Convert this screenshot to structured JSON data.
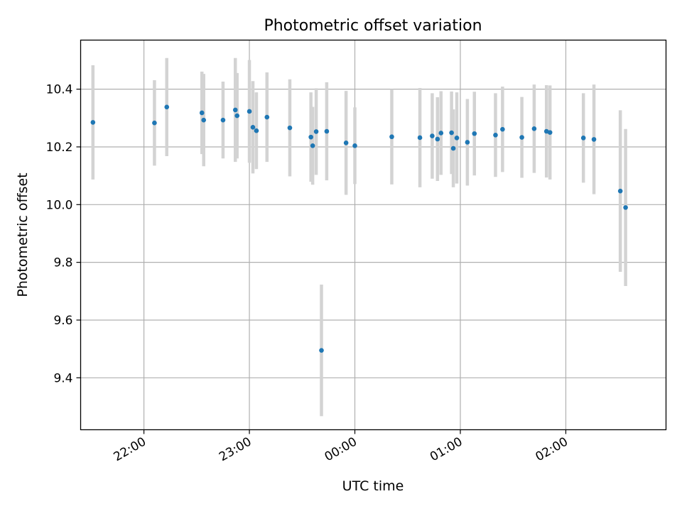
{
  "chart_data": {
    "type": "scatter",
    "title": "Photometric offset variation",
    "xlabel": "UTC time",
    "ylabel": "Photometric offset",
    "grid": true,
    "legend": null,
    "x_axis": {
      "range": [
        "21:24",
        "02:57"
      ],
      "ticks": [
        "22:00",
        "23:00",
        "00:00",
        "01:00",
        "02:00"
      ]
    },
    "y_axis": {
      "range": [
        9.22,
        10.57
      ],
      "ticks": [
        9.4,
        9.6,
        9.8,
        10.0,
        10.2,
        10.4
      ],
      "tick_labels": [
        "9.4",
        "9.6",
        "9.8",
        "10.0",
        "10.2",
        "10.4"
      ]
    },
    "colors": {
      "marker": "#1f77b4",
      "errorbar": "#d3d3d3",
      "grid": "#b0b0b0"
    },
    "series": [
      {
        "marker": "point",
        "error": "vertical",
        "points": [
          {
            "t": "21:31",
            "y": 10.285,
            "err": 0.198
          },
          {
            "t": "22:06",
            "y": 10.283,
            "err": 0.148
          },
          {
            "t": "22:13",
            "y": 10.338,
            "err": 0.17
          },
          {
            "t": "22:33",
            "y": 10.318,
            "err": 0.143
          },
          {
            "t": "22:34",
            "y": 10.293,
            "err": 0.16
          },
          {
            "t": "22:45",
            "y": 10.293,
            "err": 0.133
          },
          {
            "t": "22:52",
            "y": 10.328,
            "err": 0.18
          },
          {
            "t": "22:53",
            "y": 10.308,
            "err": 0.148
          },
          {
            "t": "23:00",
            "y": 10.323,
            "err": 0.178
          },
          {
            "t": "23:02",
            "y": 10.268,
            "err": 0.16
          },
          {
            "t": "23:04",
            "y": 10.256,
            "err": 0.133
          },
          {
            "t": "23:10",
            "y": 10.303,
            "err": 0.155
          },
          {
            "t": "23:23",
            "y": 10.266,
            "err": 0.168
          },
          {
            "t": "23:35",
            "y": 10.234,
            "err": 0.155
          },
          {
            "t": "23:36",
            "y": 10.204,
            "err": 0.135
          },
          {
            "t": "23:38",
            "y": 10.253,
            "err": 0.15
          },
          {
            "t": "23:41",
            "y": 9.495,
            "err": 0.228
          },
          {
            "t": "23:44",
            "y": 10.254,
            "err": 0.17
          },
          {
            "t": "23:55",
            "y": 10.214,
            "err": 0.18
          },
          {
            "t": "00:00",
            "y": 10.204,
            "err": 0.133
          },
          {
            "t": "00:21",
            "y": 10.235,
            "err": 0.165
          },
          {
            "t": "00:37",
            "y": 10.232,
            "err": 0.172
          },
          {
            "t": "00:44",
            "y": 10.238,
            "err": 0.148
          },
          {
            "t": "00:47",
            "y": 10.227,
            "err": 0.145
          },
          {
            "t": "00:49",
            "y": 10.248,
            "err": 0.145
          },
          {
            "t": "00:55",
            "y": 10.249,
            "err": 0.143
          },
          {
            "t": "00:56",
            "y": 10.195,
            "err": 0.135
          },
          {
            "t": "00:58",
            "y": 10.231,
            "err": 0.158
          },
          {
            "t": "01:04",
            "y": 10.216,
            "err": 0.15
          },
          {
            "t": "01:08",
            "y": 10.246,
            "err": 0.145
          },
          {
            "t": "01:20",
            "y": 10.241,
            "err": 0.145
          },
          {
            "t": "01:24",
            "y": 10.261,
            "err": 0.148
          },
          {
            "t": "01:35",
            "y": 10.233,
            "err": 0.14
          },
          {
            "t": "01:42",
            "y": 10.263,
            "err": 0.153
          },
          {
            "t": "01:49",
            "y": 10.254,
            "err": 0.16
          },
          {
            "t": "01:51",
            "y": 10.25,
            "err": 0.163
          },
          {
            "t": "02:10",
            "y": 10.231,
            "err": 0.155
          },
          {
            "t": "02:16",
            "y": 10.226,
            "err": 0.19
          },
          {
            "t": "02:31",
            "y": 10.047,
            "err": 0.28
          },
          {
            "t": "02:34",
            "y": 9.99,
            "err": 0.272
          }
        ]
      }
    ]
  }
}
